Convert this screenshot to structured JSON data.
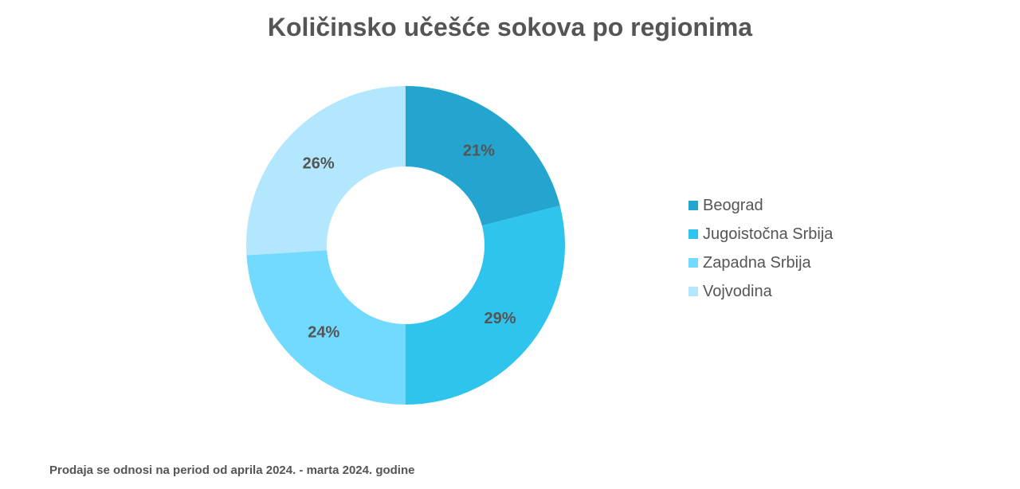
{
  "chart_data": {
    "type": "pie",
    "title": "Količinsko učešće sokova po regionima",
    "categories": [
      "Beograd",
      "Jugoistočna Srbija",
      "Zapadna Srbija",
      "Vojvodina"
    ],
    "values": [
      21,
      29,
      24,
      26
    ],
    "labels": [
      "21%",
      "29%",
      "24%",
      "26%"
    ],
    "colors": [
      "#23A5CF",
      "#2EC4EE",
      "#72D9FF",
      "#B3E7FD"
    ],
    "legend_position": "right"
  },
  "footnote": "Prodaja se odnosi na period od aprila 2024. - marta 2024. godine"
}
